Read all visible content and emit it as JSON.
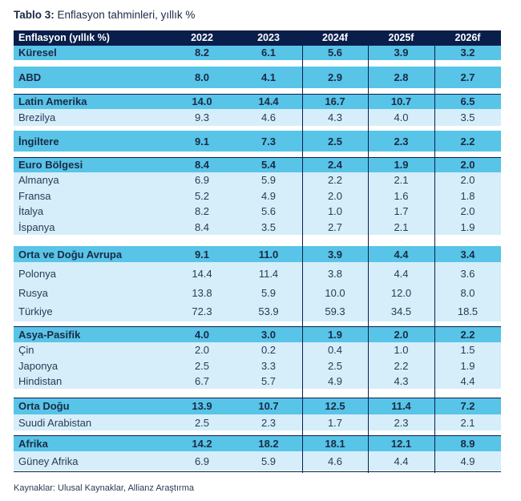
{
  "title": {
    "bold": "Tablo 3:",
    "text": "Enflasyon tahminleri, yıllık %"
  },
  "header": {
    "label": "Enflasyon (yıllık %)",
    "years": [
      "2022",
      "2023",
      "2024f",
      "2025f",
      "2026f"
    ]
  },
  "colors": {
    "header_bg": "#0a1e4b",
    "region_bg": "#58c4e8",
    "sub_bg": "#d6eefa",
    "sub_bg_alt": "#c9e8f7",
    "rule": "#0a1e4b"
  },
  "rows": [
    {
      "name": "Küresel",
      "values": [
        "8.2",
        "6.1",
        "5.6",
        "3.9",
        "3.2"
      ],
      "type": "region"
    },
    {
      "name": "ABD",
      "values": [
        "8.0",
        "4.1",
        "2.9",
        "2.8",
        "2.7"
      ],
      "type": "region"
    },
    {
      "name": "Latin Amerika",
      "values": [
        "14.0",
        "14.4",
        "16.7",
        "10.7",
        "6.5"
      ],
      "type": "region"
    },
    {
      "name": "Brezilya",
      "values": [
        "9.3",
        "4.6",
        "4.3",
        "4.0",
        "3.5"
      ],
      "type": "country"
    },
    {
      "name": "İngiltere",
      "values": [
        "9.1",
        "7.3",
        "2.5",
        "2.3",
        "2.2"
      ],
      "type": "region"
    },
    {
      "name": "Euro Bölgesi",
      "values": [
        "8.4",
        "5.4",
        "2.4",
        "1.9",
        "2.0"
      ],
      "type": "region"
    },
    {
      "name": "Almanya",
      "values": [
        "6.9",
        "5.9",
        "2.2",
        "2.1",
        "2.0"
      ],
      "type": "country"
    },
    {
      "name": "Fransa",
      "values": [
        "5.2",
        "4.9",
        "2.0",
        "1.6",
        "1.8"
      ],
      "type": "country"
    },
    {
      "name": "İtalya",
      "values": [
        "8.2",
        "5.6",
        "1.0",
        "1.7",
        "2.0"
      ],
      "type": "country"
    },
    {
      "name": "İspanya",
      "values": [
        "8.4",
        "3.5",
        "2.7",
        "2.1",
        "1.9"
      ],
      "type": "country"
    },
    {
      "name": "Orta ve Doğu Avrupa",
      "values": [
        "9.1",
        "11.0",
        "3.9",
        "4.4",
        "3.4"
      ],
      "type": "region"
    },
    {
      "name": "Polonya",
      "values": [
        "14.4",
        "11.4",
        "3.8",
        "4.4",
        "3.6"
      ],
      "type": "country"
    },
    {
      "name": "Rusya",
      "values": [
        "13.8",
        "5.9",
        "10.0",
        "12.0",
        "8.0"
      ],
      "type": "country"
    },
    {
      "name": "Türkiye",
      "values": [
        "72.3",
        "53.9",
        "59.3",
        "34.5",
        "18.5"
      ],
      "type": "country"
    },
    {
      "name": "Asya-Pasifik",
      "values": [
        "4.0",
        "3.0",
        "1.9",
        "2.0",
        "2.2"
      ],
      "type": "region"
    },
    {
      "name": "Çin",
      "values": [
        "2.0",
        "0.2",
        "0.4",
        "1.0",
        "1.5"
      ],
      "type": "country"
    },
    {
      "name": "Japonya",
      "values": [
        "2.5",
        "3.3",
        "2.5",
        "2.2",
        "1.9"
      ],
      "type": "country"
    },
    {
      "name": "Hindistan",
      "values": [
        "6.7",
        "5.7",
        "4.9",
        "4.3",
        "4.4"
      ],
      "type": "country"
    },
    {
      "name": "Orta Doğu",
      "values": [
        "13.9",
        "10.7",
        "12.5",
        "11.4",
        "7.2"
      ],
      "type": "region"
    },
    {
      "name": "Suudi Arabistan",
      "values": [
        "2.5",
        "2.3",
        "1.7",
        "2.3",
        "2.1"
      ],
      "type": "country"
    },
    {
      "name": "Afrika",
      "values": [
        "14.2",
        "18.2",
        "18.1",
        "12.1",
        "8.9"
      ],
      "type": "region"
    },
    {
      "name": "Güney Afrika",
      "values": [
        "6.9",
        "5.9",
        "4.6",
        "4.4",
        "4.9"
      ],
      "type": "country"
    }
  ],
  "source": "Kaynaklar: Ulusal Kaynaklar, Allianz Araştırma"
}
